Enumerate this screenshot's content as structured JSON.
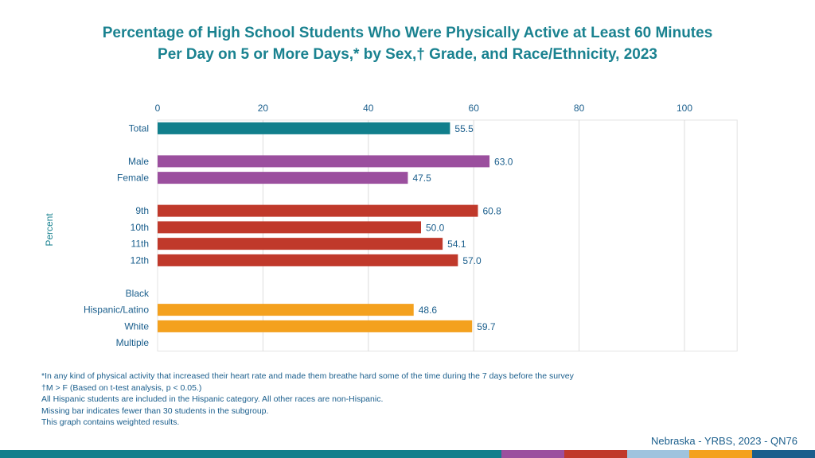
{
  "title_line1": "Percentage of High School Students Who Were Physically Active at Least 60 Minutes",
  "title_line2": "Per Day on 5 or More Days,* by Sex,† Grade, and Race/Ethnicity, 2023",
  "chart_data": {
    "type": "bar",
    "orientation": "horizontal",
    "title": "Percentage of High School Students Who Were Physically Active at Least 60 Minutes Per Day on 5 or More Days,* by Sex,† Grade, and Race/Ethnicity, 2023",
    "xlabel": "",
    "ylabel": "Percent",
    "xlim": [
      0,
      110
    ],
    "ticks": [
      0,
      20,
      40,
      60,
      80,
      100
    ],
    "tick_labels": [
      "0",
      "20",
      "40",
      "60",
      "80",
      "100"
    ],
    "categories": [
      "Total",
      "",
      "Male",
      "Female",
      "",
      "9th",
      "10th",
      "11th",
      "12th",
      "",
      "Black",
      "Hispanic/Latino",
      "White",
      "Multiple"
    ],
    "values": [
      55.5,
      null,
      63.0,
      47.5,
      null,
      60.8,
      50.0,
      54.1,
      57.0,
      null,
      null,
      48.6,
      59.7,
      null
    ],
    "value_labels": [
      "55.5",
      "",
      "63.0",
      "47.5",
      "",
      "60.8",
      "50.0",
      "54.1",
      "57.0",
      "",
      "",
      "48.6",
      "59.7",
      ""
    ],
    "groups": [
      "Total",
      "",
      "Sex",
      "Sex",
      "",
      "Grade",
      "Grade",
      "Grade",
      "Grade",
      "",
      "Race/Ethnicity",
      "Race/Ethnicity",
      "Race/Ethnicity",
      "Race/Ethnicity"
    ],
    "group_colors": {
      "Total": "#117f8c",
      "Sex": "#9b4f9e",
      "Grade": "#c0392b",
      "Race/Ethnicity": "#f4a11e"
    },
    "grid": true
  },
  "notes": [
    "*In any kind of physical activity that increased their heart rate and made them breathe hard some of the time during the 7 days before the survey",
    "†M > F (Based on t-test analysis, p < 0.05.)",
    "All Hispanic students are included in the Hispanic category.  All other races are non-Hispanic.",
    "Missing bar indicates fewer than 30 students in the subgroup.",
    "This graph contains weighted results."
  ],
  "source": "Nebraska - YRBS, 2023 - QN76",
  "colors": {
    "title": "#1a8290",
    "text": "#1a5e8c",
    "bottom_bar": [
      "#117f8c",
      "#117f8c",
      "#117f8c",
      "#117f8c",
      "#117f8c",
      "#117f8c",
      "#117f8c",
      "#117f8c",
      "#9b4f9e",
      "#c0392b",
      "#9fc3de",
      "#f4a11e",
      "#1a5e8c"
    ]
  }
}
